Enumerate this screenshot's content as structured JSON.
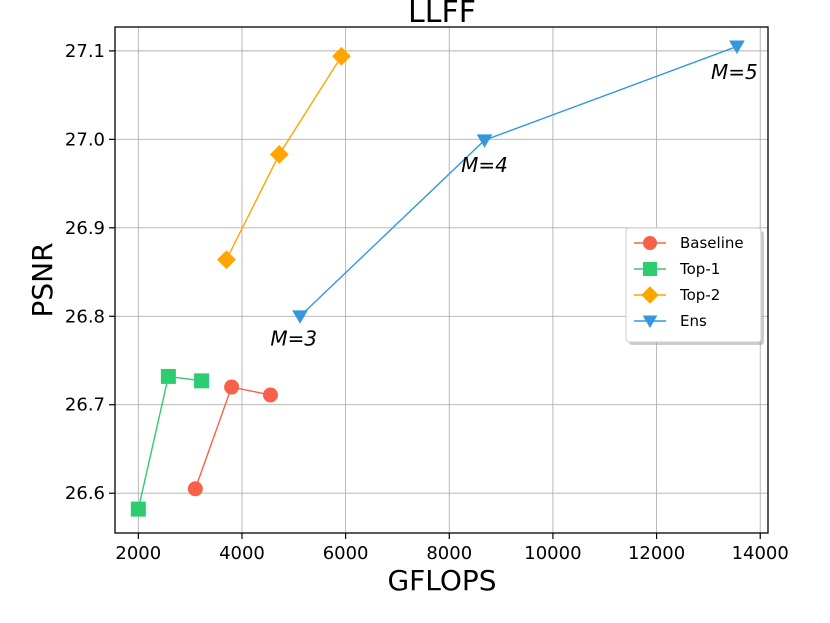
{
  "chart_data": {
    "type": "line",
    "title": "LLFF",
    "xlabel": "GFLOPS",
    "ylabel": "PSNR",
    "xlim": [
      1550,
      14150
    ],
    "ylim": [
      26.555,
      27.127
    ],
    "xticks": [
      2000,
      4000,
      6000,
      8000,
      10000,
      12000,
      14000
    ],
    "yticks": [
      26.6,
      26.7,
      26.8,
      26.9,
      27.0,
      27.1
    ],
    "xtick_labels": [
      "2000",
      "4000",
      "6000",
      "8000",
      "10000",
      "12000",
      "14000"
    ],
    "ytick_labels": [
      "26.6",
      "26.7",
      "26.8",
      "26.9",
      "27.0",
      "27.1"
    ],
    "grid": true,
    "legend_position": "center-right",
    "series": [
      {
        "name": "Baseline",
        "color": "#f8604a",
        "marker": "circle",
        "x": [
          3100,
          3800,
          4550
        ],
        "y": [
          26.605,
          26.72,
          26.711
        ]
      },
      {
        "name": "Top-1",
        "color": "#2ecc71",
        "marker": "square",
        "x": [
          2000,
          2580,
          3220
        ],
        "y": [
          26.582,
          26.732,
          26.727
        ]
      },
      {
        "name": "Top-2",
        "color": "#ffa500",
        "marker": "diamond",
        "x": [
          3700,
          4720,
          5920
        ],
        "y": [
          26.864,
          26.983,
          27.094
        ]
      },
      {
        "name": "Ens",
        "color": "#3498db",
        "marker": "triangle-down",
        "x": [
          5120,
          8680,
          13550
        ],
        "y": [
          26.8,
          26.999,
          27.105
        ]
      }
    ],
    "annotations": [
      {
        "text": "M=3",
        "x": 5000,
        "y": 26.775
      },
      {
        "text": "M=4",
        "x": 8680,
        "y": 26.971
      },
      {
        "text": "M=5",
        "x": 13500,
        "y": 27.076
      }
    ]
  }
}
